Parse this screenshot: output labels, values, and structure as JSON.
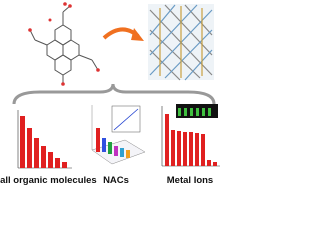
{
  "captions": [
    "Small organic molecules",
    "NACs",
    "Metal Ions"
  ]
}
